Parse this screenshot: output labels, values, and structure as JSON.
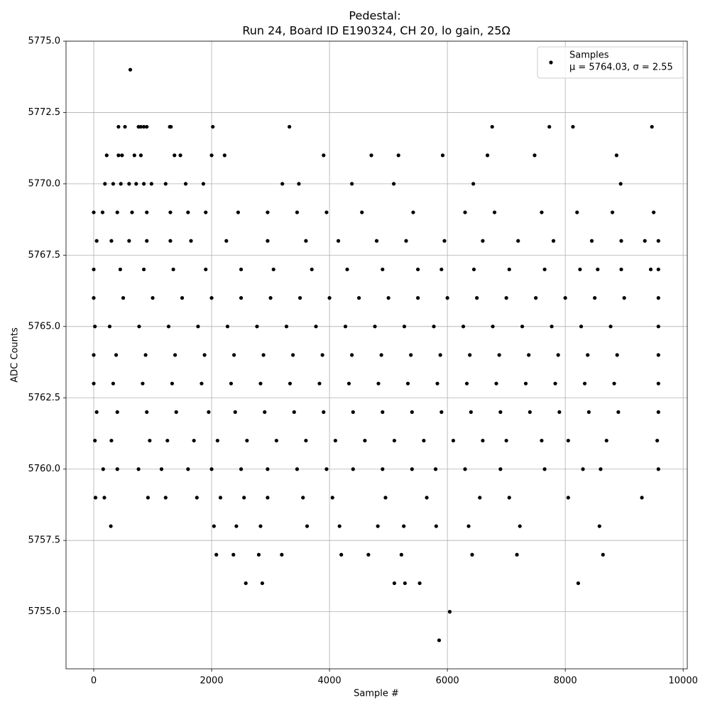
{
  "chart_data": {
    "type": "scatter",
    "title": "Pedestal:",
    "subtitle": "Run 24, Board ID E190324, CH 20, lo gain, 25Ω",
    "x_label": "Sample #",
    "y_label": "ADC Counts",
    "xlim": [
      -470,
      10070
    ],
    "ylim": [
      5753,
      5775
    ],
    "xticks": [
      0,
      2000,
      4000,
      6000,
      8000,
      10000
    ],
    "yticks": [
      {
        "value": 5755,
        "label": "5755.0"
      },
      {
        "value": 5757.5,
        "label": "5757.5"
      },
      {
        "value": 5760,
        "label": "5760.0"
      },
      {
        "value": 5762.5,
        "label": "5762.5"
      },
      {
        "value": 5765,
        "label": "5765.0"
      },
      {
        "value": 5767.5,
        "label": "5767.5"
      },
      {
        "value": 5770,
        "label": "5770.0"
      },
      {
        "value": 5772.5,
        "label": "5772.5"
      },
      {
        "value": 5775,
        "label": "5775.0"
      }
    ],
    "grid": true,
    "legend_position": "upper right",
    "legend_note": "μ = 5764.03, σ = 2.55",
    "series": [
      {
        "name": "Samples",
        "color": "#000000",
        "x": [
          620,
          420,
          530,
          760,
          800,
          850,
          900,
          1290,
          1310,
          2020,
          3320,
          6760,
          7730,
          8130,
          9470,
          220,
          420,
          480,
          690,
          800,
          1370,
          1470,
          2000,
          2220,
          3900,
          4710,
          5170,
          5920,
          6680,
          7480,
          8870,
          190,
          330,
          460,
          600,
          720,
          850,
          980,
          1220,
          1560,
          1860,
          3200,
          3480,
          4380,
          5090,
          6440,
          8940,
          0,
          150,
          400,
          650,
          900,
          1300,
          1600,
          1900,
          2450,
          2950,
          3450,
          3950,
          4550,
          5420,
          6300,
          6800,
          7600,
          8200,
          8800,
          9500,
          50,
          300,
          600,
          900,
          1300,
          1650,
          2250,
          2950,
          3600,
          4150,
          4800,
          5300,
          5950,
          6600,
          7200,
          7800,
          8450,
          8950,
          9350,
          9580,
          0,
          450,
          850,
          1350,
          1900,
          2500,
          3050,
          3700,
          4300,
          4900,
          5500,
          5900,
          6450,
          7050,
          7650,
          8250,
          8550,
          8950,
          9450,
          9580,
          0,
          500,
          1000,
          1500,
          2000,
          2500,
          3000,
          3500,
          4000,
          4500,
          5000,
          5500,
          6000,
          6500,
          7000,
          7500,
          8000,
          8500,
          9000,
          9580,
          20,
          270,
          770,
          1270,
          1770,
          2270,
          2770,
          3270,
          3770,
          4270,
          4770,
          5270,
          5770,
          6270,
          6770,
          7270,
          7770,
          8270,
          8770,
          9580,
          0,
          380,
          880,
          1380,
          1880,
          2380,
          2880,
          3380,
          3880,
          4380,
          4880,
          5380,
          5880,
          6380,
          6880,
          7380,
          7880,
          8380,
          8880,
          9580,
          0,
          330,
          830,
          1330,
          1830,
          2330,
          2830,
          3330,
          3830,
          4330,
          4830,
          5330,
          5830,
          6330,
          6830,
          7330,
          7830,
          8330,
          8830,
          9580,
          50,
          400,
          900,
          1400,
          1950,
          2400,
          2900,
          3400,
          3900,
          4400,
          4900,
          5400,
          5900,
          6400,
          6900,
          7400,
          7900,
          8400,
          8900,
          9580,
          20,
          300,
          950,
          1250,
          1700,
          2100,
          2600,
          3100,
          3600,
          4100,
          4600,
          5100,
          5600,
          6100,
          6600,
          7000,
          7600,
          8050,
          8700,
          9560,
          160,
          400,
          760,
          1150,
          1600,
          2000,
          2500,
          2950,
          3450,
          3950,
          4400,
          4900,
          5400,
          5800,
          6300,
          6900,
          7650,
          8300,
          8600,
          9580,
          30,
          180,
          920,
          1220,
          1750,
          2150,
          2550,
          2950,
          3550,
          4050,
          4950,
          5650,
          6550,
          7050,
          8050,
          9300,
          290,
          2040,
          2420,
          2830,
          3620,
          4170,
          4820,
          5260,
          5810,
          6360,
          7230,
          8580,
          2080,
          2370,
          2800,
          3190,
          4200,
          4660,
          5220,
          6420,
          7180,
          8640,
          2580,
          2860,
          5100,
          5280,
          5530,
          8220,
          6040,
          5860
        ],
        "values": [
          5774,
          5772,
          5772,
          5772,
          5772,
          5772,
          5772,
          5772,
          5772,
          5772,
          5772,
          5772,
          5772,
          5772,
          5772,
          5771,
          5771,
          5771,
          5771,
          5771,
          5771,
          5771,
          5771,
          5771,
          5771,
          5771,
          5771,
          5771,
          5771,
          5771,
          5771,
          5770,
          5770,
          5770,
          5770,
          5770,
          5770,
          5770,
          5770,
          5770,
          5770,
          5770,
          5770,
          5770,
          5770,
          5770,
          5770,
          5769,
          5769,
          5769,
          5769,
          5769,
          5769,
          5769,
          5769,
          5769,
          5769,
          5769,
          5769,
          5769,
          5769,
          5769,
          5769,
          5769,
          5769,
          5769,
          5769,
          5768,
          5768,
          5768,
          5768,
          5768,
          5768,
          5768,
          5768,
          5768,
          5768,
          5768,
          5768,
          5768,
          5768,
          5768,
          5768,
          5768,
          5768,
          5768,
          5768,
          5767,
          5767,
          5767,
          5767,
          5767,
          5767,
          5767,
          5767,
          5767,
          5767,
          5767,
          5767,
          5767,
          5767,
          5767,
          5767,
          5767,
          5767,
          5767,
          5767,
          5766,
          5766,
          5766,
          5766,
          5766,
          5766,
          5766,
          5766,
          5766,
          5766,
          5766,
          5766,
          5766,
          5766,
          5766,
          5766,
          5766,
          5766,
          5766,
          5766,
          5765,
          5765,
          5765,
          5765,
          5765,
          5765,
          5765,
          5765,
          5765,
          5765,
          5765,
          5765,
          5765,
          5765,
          5765,
          5765,
          5765,
          5765,
          5765,
          5765,
          5764,
          5764,
          5764,
          5764,
          5764,
          5764,
          5764,
          5764,
          5764,
          5764,
          5764,
          5764,
          5764,
          5764,
          5764,
          5764,
          5764,
          5764,
          5764,
          5764,
          5763,
          5763,
          5763,
          5763,
          5763,
          5763,
          5763,
          5763,
          5763,
          5763,
          5763,
          5763,
          5763,
          5763,
          5763,
          5763,
          5763,
          5763,
          5763,
          5763,
          5762,
          5762,
          5762,
          5762,
          5762,
          5762,
          5762,
          5762,
          5762,
          5762,
          5762,
          5762,
          5762,
          5762,
          5762,
          5762,
          5762,
          5762,
          5762,
          5762,
          5761,
          5761,
          5761,
          5761,
          5761,
          5761,
          5761,
          5761,
          5761,
          5761,
          5761,
          5761,
          5761,
          5761,
          5761,
          5761,
          5761,
          5761,
          5761,
          5761,
          5760,
          5760,
          5760,
          5760,
          5760,
          5760,
          5760,
          5760,
          5760,
          5760,
          5760,
          5760,
          5760,
          5760,
          5760,
          5760,
          5760,
          5760,
          5760,
          5760,
          5759,
          5759,
          5759,
          5759,
          5759,
          5759,
          5759,
          5759,
          5759,
          5759,
          5759,
          5759,
          5759,
          5759,
          5759,
          5759,
          5758,
          5758,
          5758,
          5758,
          5758,
          5758,
          5758,
          5758,
          5758,
          5758,
          5758,
          5758,
          5757,
          5757,
          5757,
          5757,
          5757,
          5757,
          5757,
          5757,
          5757,
          5757,
          5756,
          5756,
          5756,
          5756,
          5756,
          5756,
          5755,
          5754
        ]
      }
    ]
  }
}
